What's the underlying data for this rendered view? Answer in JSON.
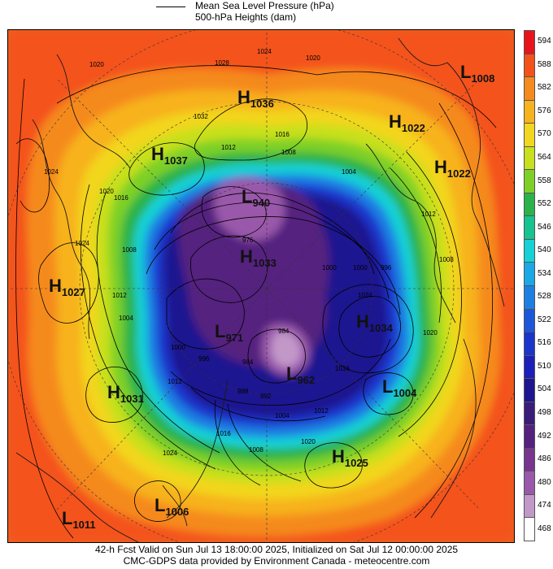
{
  "legend": {
    "mslp_label": "Mean Sea Level Pressure (hPa)",
    "heights_label": "500-hPa Heights (dam)"
  },
  "colors": {
    "h594": "#e8141b",
    "h588": "#f4521a",
    "h582": "#f58a1f",
    "h576": "#f7b21f",
    "h570": "#f2d61f",
    "h564": "#c8e01e",
    "h558": "#7ed028",
    "h552": "#2bb24a",
    "h546": "#17c38f",
    "h540": "#16d1d6",
    "h534": "#1ba8e6",
    "h528": "#1e7fe3",
    "h522": "#1b57d8",
    "h516": "#1a34cc",
    "h510": "#1c1fb8",
    "h504": "#1e1690",
    "h498": "#3a1d78",
    "h492": "#55217f",
    "h486": "#77358f",
    "h480": "#9a58aa",
    "h474": "#c298c9",
    "h468": "#ffffff"
  },
  "scale": {
    "ticks": [
      "594",
      "588",
      "582",
      "576",
      "570",
      "564",
      "558",
      "552",
      "546",
      "540",
      "534",
      "528",
      "522",
      "516",
      "510",
      "504",
      "498",
      "492",
      "486",
      "480",
      "474",
      "468"
    ]
  },
  "systems": [
    {
      "id": "h1036",
      "type": "H",
      "value": "1036"
    },
    {
      "id": "h1037",
      "type": "H",
      "value": "1037"
    },
    {
      "id": "h1022a",
      "type": "H",
      "value": "1022"
    },
    {
      "id": "h1022b",
      "type": "H",
      "value": "1022"
    },
    {
      "id": "l1008",
      "type": "L",
      "value": "1008"
    },
    {
      "id": "l940",
      "type": "L",
      "value": "940"
    },
    {
      "id": "h1033",
      "type": "H",
      "value": "1033"
    },
    {
      "id": "h1027",
      "type": "H",
      "value": "1027"
    },
    {
      "id": "h1034",
      "type": "H",
      "value": "1034"
    },
    {
      "id": "l971",
      "type": "L",
      "value": "971"
    },
    {
      "id": "l962",
      "type": "L",
      "value": "962"
    },
    {
      "id": "h1031",
      "type": "H",
      "value": "1031"
    },
    {
      "id": "l1004",
      "type": "L",
      "value": "1004"
    },
    {
      "id": "h1025",
      "type": "H",
      "value": "1025"
    },
    {
      "id": "l1006",
      "type": "L",
      "value": "1006"
    },
    {
      "id": "l1011",
      "type": "L",
      "value": "1011"
    }
  ],
  "isobar_labels": [
    "1020",
    "1024",
    "1028",
    "1020",
    "1032",
    "1016",
    "1012",
    "1008",
    "1004",
    "1024",
    "1020",
    "1016",
    "1024",
    "1008",
    "1012",
    "1004",
    "1000",
    "996",
    "1000",
    "1024",
    "1012",
    "1008",
    "1016",
    "1020",
    "1012",
    "1004",
    "1012",
    "1016",
    "1020",
    "1008",
    "1024",
    "992",
    "984",
    "976",
    "1000",
    "996",
    "984",
    "988"
  ],
  "footer": {
    "line1": "42-h Fcst Valid on Sun Jul 13 18:00:00 2025, Initialized on Sat Jul 12 00:00:00 2025",
    "line2": "CMC-GDPS data provided by Environment Canada - meteocentre.com"
  }
}
